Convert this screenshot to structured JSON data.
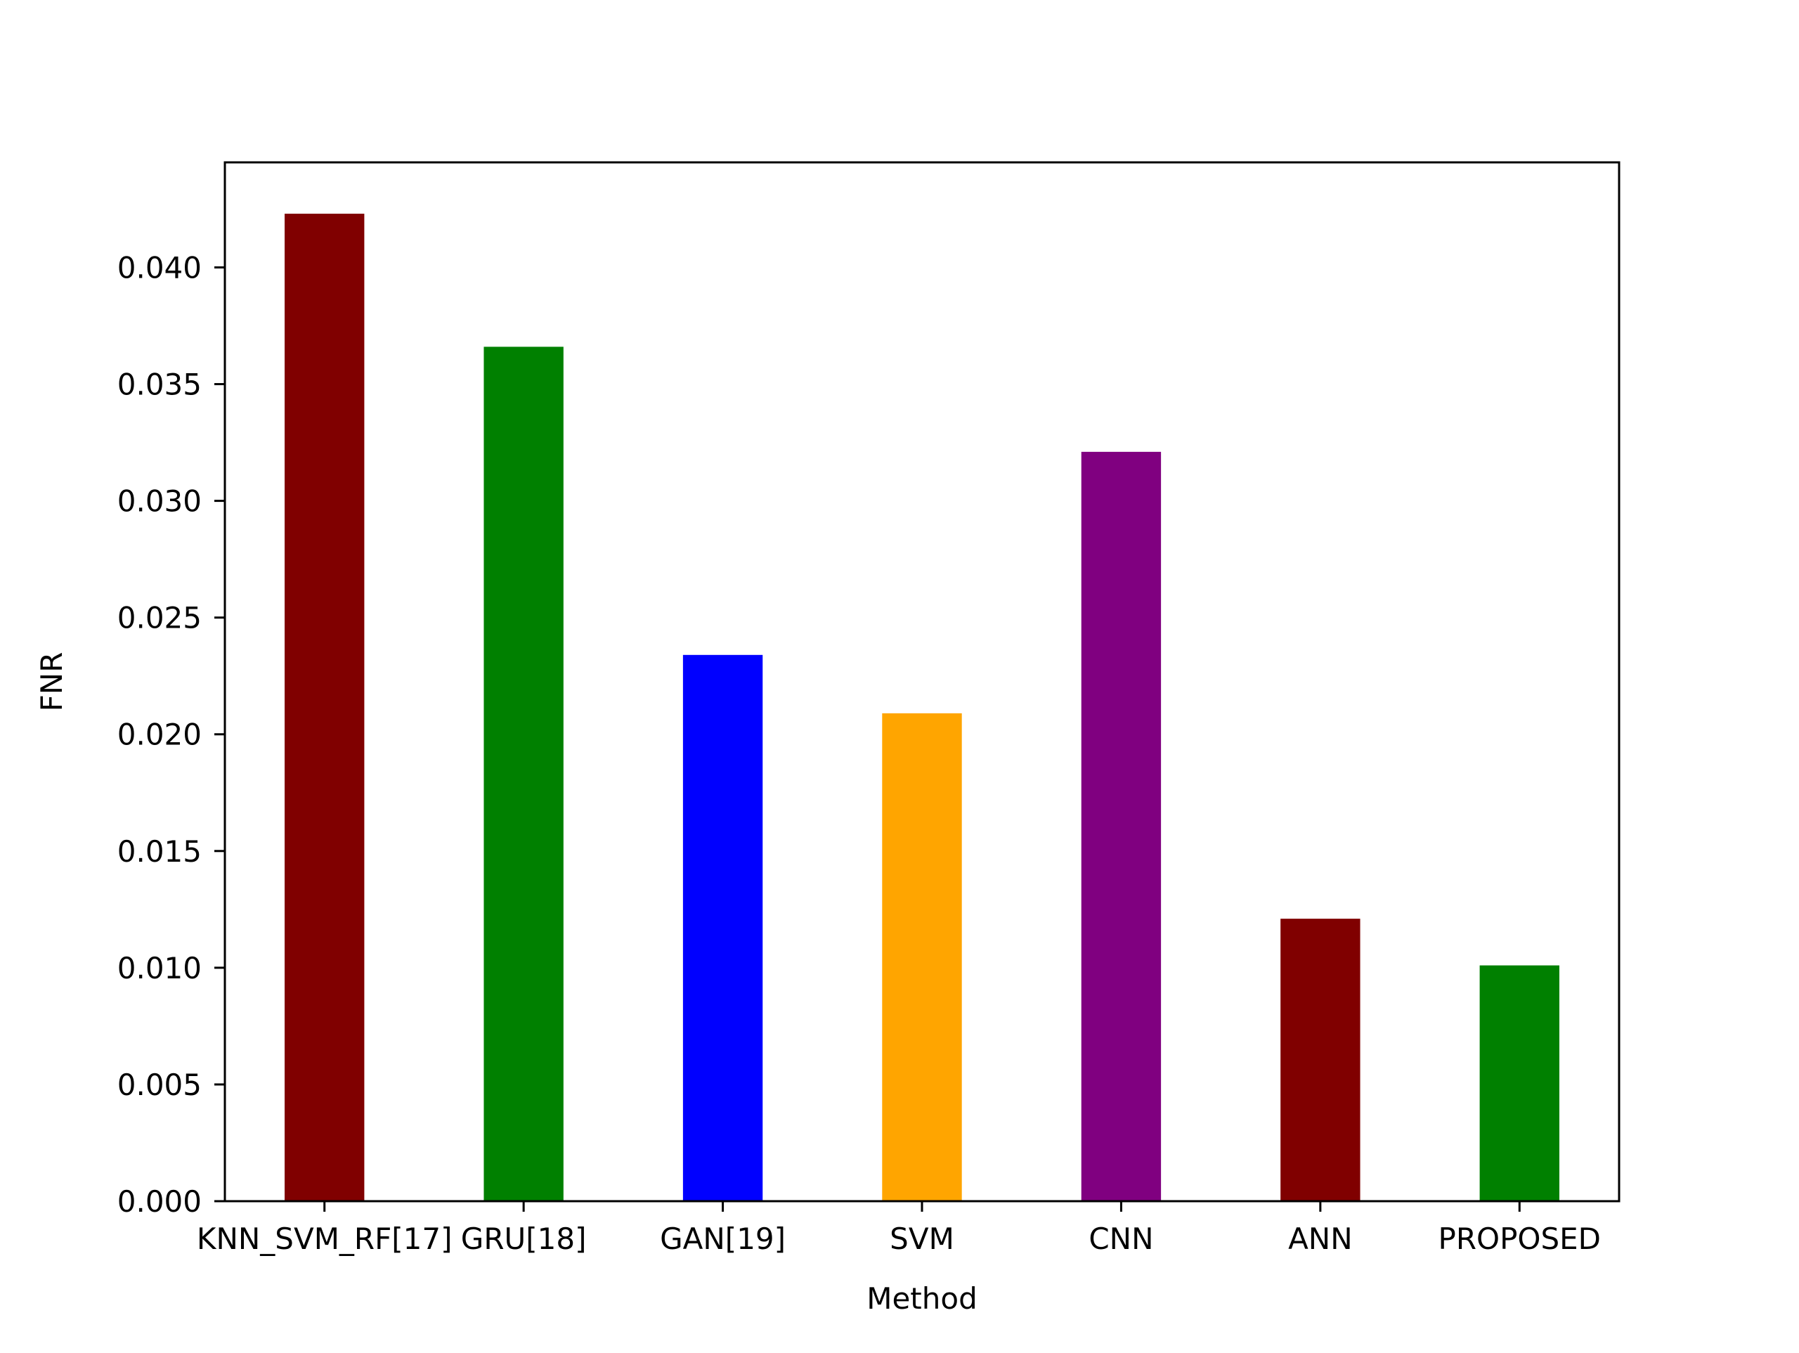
{
  "chart_data": {
    "type": "bar",
    "title": "",
    "xlabel": "Method",
    "ylabel": "FNR",
    "categories": [
      "KNN_SVM_RF[17]",
      "GRU[18]",
      "GAN[19]",
      "SVM",
      "CNN",
      "ANN",
      "PROPOSED"
    ],
    "values": [
      0.0423,
      0.0366,
      0.0234,
      0.0209,
      0.0321,
      0.0121,
      0.0101
    ],
    "colors": [
      "#800000",
      "#008000",
      "#0000ff",
      "#ffa500",
      "#800080",
      "#800000",
      "#008000"
    ],
    "ylim": [
      0,
      0.0445
    ],
    "yticks": [
      "0.000",
      "0.005",
      "0.010",
      "0.015",
      "0.020",
      "0.025",
      "0.030",
      "0.035",
      "0.040"
    ],
    "ytick_values": [
      0,
      0.005,
      0.01,
      0.015,
      0.02,
      0.025,
      0.03,
      0.035,
      0.04
    ],
    "grid": false,
    "legend": "none"
  }
}
